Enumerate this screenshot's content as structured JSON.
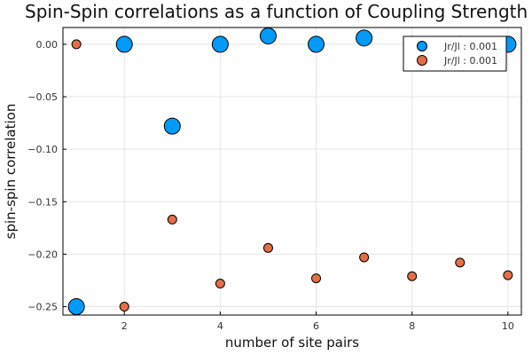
{
  "chart_data": {
    "type": "scatter",
    "title": "Spin-Spin correlations as a function of Coupling Strength",
    "xlabel": "number of site pairs",
    "ylabel": "spin-spin correlation",
    "xlim": [
      0.72,
      10.28
    ],
    "ylim": [
      -0.258,
      0.016
    ],
    "xticks": [
      2,
      4,
      6,
      8,
      10
    ],
    "yticks": [
      0.0,
      -0.05,
      -0.1,
      -0.15,
      -0.2,
      -0.25
    ],
    "ytick_labels": [
      "0.00",
      "−0.05",
      "−0.10",
      "−0.15",
      "−0.20",
      "−0.25"
    ],
    "grid": true,
    "legend_position": "top-right",
    "series": [
      {
        "name": "Jr/Jl : 0.001",
        "color": "#009AFA",
        "marker_size": "large",
        "x": [
          1,
          2,
          3,
          4,
          5,
          6,
          7,
          8,
          9,
          10
        ],
        "y": [
          -0.25,
          0.0,
          -0.078,
          0.0,
          0.008,
          0.0,
          0.006,
          0.0,
          0.0,
          0.0
        ]
      },
      {
        "name": "Jr/Jl : 0.001",
        "color": "#E36F47",
        "marker_size": "small",
        "x": [
          1,
          2,
          3,
          4,
          5,
          6,
          7,
          8,
          9,
          10
        ],
        "y": [
          0.0,
          -0.25,
          -0.167,
          -0.228,
          -0.194,
          -0.223,
          -0.203,
          -0.221,
          -0.208,
          -0.22
        ]
      }
    ]
  }
}
